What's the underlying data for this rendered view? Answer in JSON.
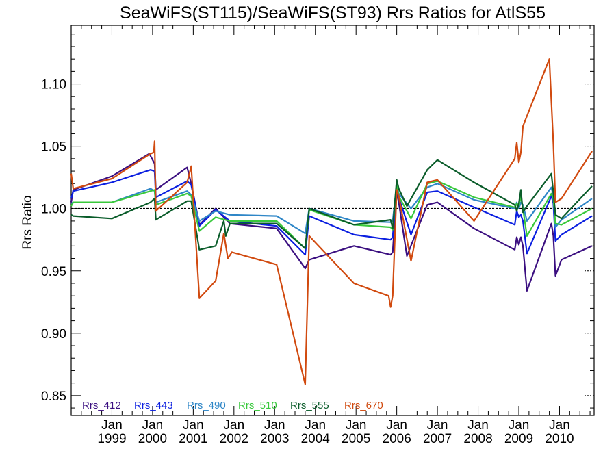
{
  "chart_data": {
    "type": "line",
    "title": "SeaWiFS(ST115)/SeaWiFS(ST93)  Rrs Ratios for AtlS55",
    "ylabel": "Rrs Ratio",
    "xlabel": "",
    "xlim": [
      1998.0,
      2010.85
    ],
    "ylim": [
      0.834,
      1.147
    ],
    "yticks": [
      0.85,
      0.9,
      0.95,
      1.0,
      1.05,
      1.1
    ],
    "ytick_labels": [
      "0.85",
      "0.90",
      "0.95",
      "1.00",
      "1.05",
      "1.10"
    ],
    "xticks": [
      1999,
      2000,
      2001,
      2002,
      2003,
      2004,
      2005,
      2006,
      2007,
      2008,
      2009,
      2010
    ],
    "xtick_labels_top": [
      "Jan",
      "Jan",
      "Jan",
      "Jan",
      "Jan",
      "Jan",
      "Jan",
      "Jan",
      "Jan",
      "Jan",
      "Jan",
      "Jan"
    ],
    "xtick_labels_bottom": [
      "1999",
      "2000",
      "2001",
      "2002",
      "2003",
      "2004",
      "2005",
      "2006",
      "2007",
      "2008",
      "2009",
      "2010"
    ],
    "reference_line": 1.0,
    "legend_placement": "bottom-left",
    "series": [
      {
        "name": "Rrs_412",
        "color": "#3b0f80",
        "x": [
          1998.0,
          1998.05,
          1999.0,
          1999.92,
          2000.05,
          2000.08,
          2000.85,
          2000.95,
          2001.15,
          2001.55,
          2001.9,
          2003.05,
          2003.75,
          2003.85,
          2004.95,
          2005.85,
          2005.9,
          2006.0,
          2006.05,
          2006.25,
          2006.75,
          2007.0,
          2007.9,
          2008.9,
          2008.95,
          2009.0,
          2009.05,
          2009.1,
          2009.2,
          2009.8,
          2009.85,
          2009.9,
          2010.05,
          2010.8
        ],
        "y": [
          1.005,
          1.015,
          1.026,
          1.044,
          1.036,
          1.015,
          1.033,
          1.02,
          0.987,
          1.0,
          0.988,
          0.984,
          0.952,
          0.959,
          0.97,
          0.963,
          0.965,
          1.013,
          1.005,
          0.962,
          1.003,
          1.005,
          0.984,
          0.967,
          0.977,
          0.971,
          0.977,
          0.97,
          0.934,
          0.988,
          0.978,
          0.946,
          0.959,
          0.97
        ]
      },
      {
        "name": "Rrs_443",
        "color": "#0b1fe0",
        "x": [
          1998.0,
          1998.05,
          1999.0,
          1999.95,
          2000.05,
          2000.08,
          2000.85,
          2000.95,
          2001.15,
          2001.55,
          2001.9,
          2003.05,
          2003.75,
          2003.85,
          2004.95,
          2005.85,
          2005.9,
          2006.0,
          2006.05,
          2006.35,
          2006.75,
          2007.0,
          2007.9,
          2008.9,
          2008.95,
          2009.0,
          2009.05,
          2009.1,
          2009.2,
          2009.8,
          2009.85,
          2009.9,
          2010.05,
          2010.8
        ],
        "y": [
          1.008,
          1.014,
          1.021,
          1.031,
          1.03,
          1.009,
          1.022,
          1.019,
          0.986,
          0.999,
          0.99,
          0.986,
          0.963,
          0.994,
          0.979,
          0.975,
          0.977,
          1.017,
          1.009,
          0.979,
          1.013,
          1.014,
          1.001,
          0.987,
          0.998,
          0.993,
          0.995,
          0.99,
          0.964,
          1.01,
          1.004,
          0.974,
          0.979,
          0.994
        ]
      },
      {
        "name": "Rrs_490",
        "color": "#2e86c7",
        "x": [
          1998.0,
          1998.05,
          1999.0,
          1999.95,
          2000.05,
          2000.08,
          2000.85,
          2000.95,
          2001.15,
          2001.55,
          2001.9,
          2003.05,
          2003.75,
          2003.85,
          2004.95,
          2005.85,
          2005.9,
          2006.0,
          2006.05,
          2006.35,
          2006.75,
          2007.0,
          2007.9,
          2008.9,
          2008.95,
          2009.0,
          2009.05,
          2009.1,
          2009.2,
          2009.8,
          2009.85,
          2009.9,
          2010.05,
          2010.8
        ],
        "y": [
          1.004,
          1.005,
          1.005,
          1.016,
          1.014,
          1.005,
          1.014,
          1.011,
          0.99,
          0.998,
          0.995,
          0.994,
          0.98,
          1.0,
          0.99,
          0.989,
          0.99,
          1.019,
          1.012,
          1.0,
          1.017,
          1.02,
          1.007,
          1.0,
          1.005,
          1.0,
          1.005,
          1.003,
          0.99,
          1.017,
          1.01,
          0.985,
          0.991,
          1.008
        ]
      },
      {
        "name": "Rrs_510",
        "color": "#38c83b",
        "x": [
          1998.0,
          1998.05,
          1999.0,
          1999.95,
          2000.05,
          2000.08,
          2000.85,
          2000.95,
          2001.15,
          2001.55,
          2001.9,
          2003.05,
          2003.75,
          2003.85,
          2004.95,
          2005.85,
          2005.9,
          2006.0,
          2006.05,
          2006.35,
          2006.75,
          2007.0,
          2007.9,
          2008.9,
          2008.95,
          2009.0,
          2009.05,
          2009.1,
          2009.2,
          2009.8,
          2009.85,
          2009.9,
          2010.05,
          2010.8
        ],
        "y": [
          1.002,
          1.005,
          1.005,
          1.014,
          1.015,
          1.003,
          1.012,
          1.01,
          0.982,
          0.993,
          0.99,
          0.99,
          0.968,
          0.999,
          0.987,
          0.985,
          0.983,
          1.02,
          1.01,
          0.992,
          1.02,
          1.022,
          1.009,
          1.001,
          1.004,
          1.002,
          1.01,
          1.0,
          0.978,
          1.012,
          1.008,
          0.988,
          0.987,
          1.0
        ]
      },
      {
        "name": "Rrs_555",
        "color": "#0a5c2a",
        "x": [
          1998.0,
          1998.05,
          1999.0,
          1999.95,
          2000.05,
          2000.08,
          2000.85,
          2000.95,
          2001.15,
          2001.55,
          2001.75,
          2001.8,
          2001.9,
          2003.05,
          2003.75,
          2003.85,
          2004.95,
          2005.85,
          2005.9,
          2006.0,
          2006.05,
          2006.25,
          2006.75,
          2007.0,
          2007.9,
          2008.9,
          2008.95,
          2009.0,
          2009.05,
          2009.1,
          2009.2,
          2009.8,
          2009.85,
          2009.9,
          2010.05,
          2010.8
        ],
        "y": [
          0.995,
          0.994,
          0.992,
          1.005,
          1.008,
          0.991,
          1.006,
          1.006,
          0.967,
          0.97,
          0.99,
          0.978,
          0.988,
          0.988,
          0.968,
          1.0,
          0.987,
          0.991,
          0.984,
          1.023,
          1.016,
          1.002,
          1.031,
          1.039,
          1.021,
          1.003,
          0.998,
          1.004,
          1.015,
          0.997,
          1.002,
          1.028,
          1.013,
          0.995,
          0.992,
          1.018
        ]
      },
      {
        "name": "Rrs_670",
        "color": "#d14a0f",
        "x": [
          1998.0,
          1998.05,
          1999.0,
          1999.95,
          2000.03,
          2000.05,
          2000.08,
          2000.85,
          2000.95,
          2001.15,
          2001.55,
          2001.75,
          2001.85,
          2001.95,
          2003.05,
          2003.75,
          2003.85,
          2004.95,
          2005.8,
          2005.85,
          2005.9,
          2006.0,
          2006.05,
          2006.35,
          2006.75,
          2007.0,
          2007.9,
          2008.9,
          2008.95,
          2009.0,
          2009.05,
          2009.1,
          2009.75,
          2009.85,
          2009.9,
          2010.05,
          2010.8
        ],
        "y": [
          1.028,
          1.016,
          1.024,
          1.044,
          1.045,
          1.054,
          0.998,
          1.021,
          1.034,
          0.928,
          0.942,
          0.98,
          0.96,
          0.965,
          0.955,
          0.859,
          0.978,
          0.94,
          0.93,
          0.921,
          0.93,
          1.015,
          1.01,
          0.958,
          1.021,
          1.023,
          0.99,
          1.04,
          1.053,
          1.037,
          1.045,
          1.066,
          1.12,
          1.052,
          1.005,
          1.008,
          1.046
        ]
      }
    ]
  }
}
